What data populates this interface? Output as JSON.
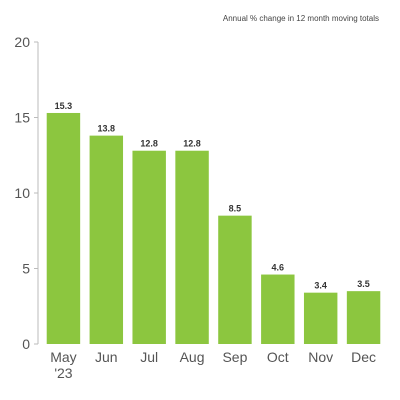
{
  "chart_data": {
    "type": "bar",
    "subtitle": "Annual % change in 12 month moving totals",
    "categories": [
      "May '23",
      "Jun",
      "Jul",
      "Aug",
      "Sep",
      "Oct",
      "Nov",
      "Dec"
    ],
    "category_lines": [
      [
        "May",
        "'23"
      ],
      [
        "Jun"
      ],
      [
        "Jul"
      ],
      [
        "Aug"
      ],
      [
        "Sep"
      ],
      [
        "Oct"
      ],
      [
        "Nov"
      ],
      [
        "Dec"
      ]
    ],
    "values": [
      15.3,
      13.8,
      12.8,
      12.8,
      8.5,
      4.6,
      3.4,
      3.5
    ],
    "data_labels": [
      "15.3",
      "13.8",
      "12.8",
      "12.8",
      "8.5",
      "4.6",
      "3.4",
      "3.5"
    ],
    "ylim": [
      0,
      20
    ],
    "yticks": [
      0,
      5,
      10,
      15,
      20
    ],
    "grid": false,
    "legend": "none",
    "bar_color": "#8cc63f"
  }
}
